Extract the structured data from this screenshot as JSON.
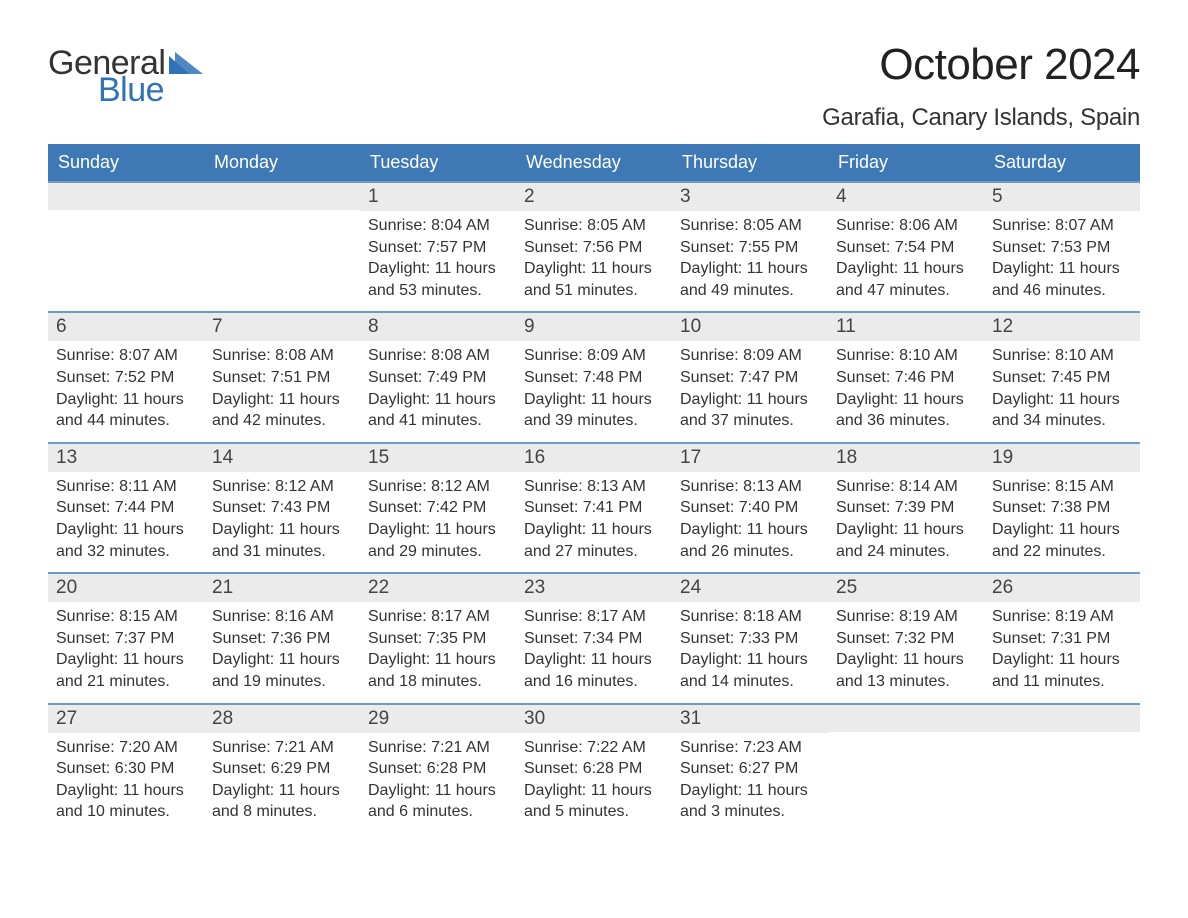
{
  "logo": {
    "text1": "General",
    "text2": "Blue",
    "color_general": "#333333",
    "color_blue": "#2f72b6",
    "tri_color": "#2f72b6"
  },
  "title": "October 2024",
  "location": "Garafia, Canary Islands, Spain",
  "colors": {
    "header_bg": "#3e78b5",
    "header_text": "#ffffff",
    "week_divider": "#6a9bc9",
    "daynum_band": "#ebebeb",
    "body_text": "#333333",
    "background": "#ffffff"
  },
  "typography": {
    "title_fontsize": 44,
    "location_fontsize": 24,
    "dow_fontsize": 18,
    "daynum_fontsize": 19,
    "body_fontsize": 16,
    "font_family": "Arial"
  },
  "days_of_week": [
    "Sunday",
    "Monday",
    "Tuesday",
    "Wednesday",
    "Thursday",
    "Friday",
    "Saturday"
  ],
  "weeks": [
    [
      {
        "num": "",
        "sunrise": "",
        "sunset": "",
        "daylight": ""
      },
      {
        "num": "",
        "sunrise": "",
        "sunset": "",
        "daylight": ""
      },
      {
        "num": "1",
        "sunrise": "Sunrise: 8:04 AM",
        "sunset": "Sunset: 7:57 PM",
        "daylight": "Daylight: 11 hours and 53 minutes."
      },
      {
        "num": "2",
        "sunrise": "Sunrise: 8:05 AM",
        "sunset": "Sunset: 7:56 PM",
        "daylight": "Daylight: 11 hours and 51 minutes."
      },
      {
        "num": "3",
        "sunrise": "Sunrise: 8:05 AM",
        "sunset": "Sunset: 7:55 PM",
        "daylight": "Daylight: 11 hours and 49 minutes."
      },
      {
        "num": "4",
        "sunrise": "Sunrise: 8:06 AM",
        "sunset": "Sunset: 7:54 PM",
        "daylight": "Daylight: 11 hours and 47 minutes."
      },
      {
        "num": "5",
        "sunrise": "Sunrise: 8:07 AM",
        "sunset": "Sunset: 7:53 PM",
        "daylight": "Daylight: 11 hours and 46 minutes."
      }
    ],
    [
      {
        "num": "6",
        "sunrise": "Sunrise: 8:07 AM",
        "sunset": "Sunset: 7:52 PM",
        "daylight": "Daylight: 11 hours and 44 minutes."
      },
      {
        "num": "7",
        "sunrise": "Sunrise: 8:08 AM",
        "sunset": "Sunset: 7:51 PM",
        "daylight": "Daylight: 11 hours and 42 minutes."
      },
      {
        "num": "8",
        "sunrise": "Sunrise: 8:08 AM",
        "sunset": "Sunset: 7:49 PM",
        "daylight": "Daylight: 11 hours and 41 minutes."
      },
      {
        "num": "9",
        "sunrise": "Sunrise: 8:09 AM",
        "sunset": "Sunset: 7:48 PM",
        "daylight": "Daylight: 11 hours and 39 minutes."
      },
      {
        "num": "10",
        "sunrise": "Sunrise: 8:09 AM",
        "sunset": "Sunset: 7:47 PM",
        "daylight": "Daylight: 11 hours and 37 minutes."
      },
      {
        "num": "11",
        "sunrise": "Sunrise: 8:10 AM",
        "sunset": "Sunset: 7:46 PM",
        "daylight": "Daylight: 11 hours and 36 minutes."
      },
      {
        "num": "12",
        "sunrise": "Sunrise: 8:10 AM",
        "sunset": "Sunset: 7:45 PM",
        "daylight": "Daylight: 11 hours and 34 minutes."
      }
    ],
    [
      {
        "num": "13",
        "sunrise": "Sunrise: 8:11 AM",
        "sunset": "Sunset: 7:44 PM",
        "daylight": "Daylight: 11 hours and 32 minutes."
      },
      {
        "num": "14",
        "sunrise": "Sunrise: 8:12 AM",
        "sunset": "Sunset: 7:43 PM",
        "daylight": "Daylight: 11 hours and 31 minutes."
      },
      {
        "num": "15",
        "sunrise": "Sunrise: 8:12 AM",
        "sunset": "Sunset: 7:42 PM",
        "daylight": "Daylight: 11 hours and 29 minutes."
      },
      {
        "num": "16",
        "sunrise": "Sunrise: 8:13 AM",
        "sunset": "Sunset: 7:41 PM",
        "daylight": "Daylight: 11 hours and 27 minutes."
      },
      {
        "num": "17",
        "sunrise": "Sunrise: 8:13 AM",
        "sunset": "Sunset: 7:40 PM",
        "daylight": "Daylight: 11 hours and 26 minutes."
      },
      {
        "num": "18",
        "sunrise": "Sunrise: 8:14 AM",
        "sunset": "Sunset: 7:39 PM",
        "daylight": "Daylight: 11 hours and 24 minutes."
      },
      {
        "num": "19",
        "sunrise": "Sunrise: 8:15 AM",
        "sunset": "Sunset: 7:38 PM",
        "daylight": "Daylight: 11 hours and 22 minutes."
      }
    ],
    [
      {
        "num": "20",
        "sunrise": "Sunrise: 8:15 AM",
        "sunset": "Sunset: 7:37 PM",
        "daylight": "Daylight: 11 hours and 21 minutes."
      },
      {
        "num": "21",
        "sunrise": "Sunrise: 8:16 AM",
        "sunset": "Sunset: 7:36 PM",
        "daylight": "Daylight: 11 hours and 19 minutes."
      },
      {
        "num": "22",
        "sunrise": "Sunrise: 8:17 AM",
        "sunset": "Sunset: 7:35 PM",
        "daylight": "Daylight: 11 hours and 18 minutes."
      },
      {
        "num": "23",
        "sunrise": "Sunrise: 8:17 AM",
        "sunset": "Sunset: 7:34 PM",
        "daylight": "Daylight: 11 hours and 16 minutes."
      },
      {
        "num": "24",
        "sunrise": "Sunrise: 8:18 AM",
        "sunset": "Sunset: 7:33 PM",
        "daylight": "Daylight: 11 hours and 14 minutes."
      },
      {
        "num": "25",
        "sunrise": "Sunrise: 8:19 AM",
        "sunset": "Sunset: 7:32 PM",
        "daylight": "Daylight: 11 hours and 13 minutes."
      },
      {
        "num": "26",
        "sunrise": "Sunrise: 8:19 AM",
        "sunset": "Sunset: 7:31 PM",
        "daylight": "Daylight: 11 hours and 11 minutes."
      }
    ],
    [
      {
        "num": "27",
        "sunrise": "Sunrise: 7:20 AM",
        "sunset": "Sunset: 6:30 PM",
        "daylight": "Daylight: 11 hours and 10 minutes."
      },
      {
        "num": "28",
        "sunrise": "Sunrise: 7:21 AM",
        "sunset": "Sunset: 6:29 PM",
        "daylight": "Daylight: 11 hours and 8 minutes."
      },
      {
        "num": "29",
        "sunrise": "Sunrise: 7:21 AM",
        "sunset": "Sunset: 6:28 PM",
        "daylight": "Daylight: 11 hours and 6 minutes."
      },
      {
        "num": "30",
        "sunrise": "Sunrise: 7:22 AM",
        "sunset": "Sunset: 6:28 PM",
        "daylight": "Daylight: 11 hours and 5 minutes."
      },
      {
        "num": "31",
        "sunrise": "Sunrise: 7:23 AM",
        "sunset": "Sunset: 6:27 PM",
        "daylight": "Daylight: 11 hours and 3 minutes."
      },
      {
        "num": "",
        "sunrise": "",
        "sunset": "",
        "daylight": ""
      },
      {
        "num": "",
        "sunrise": "",
        "sunset": "",
        "daylight": ""
      }
    ]
  ]
}
